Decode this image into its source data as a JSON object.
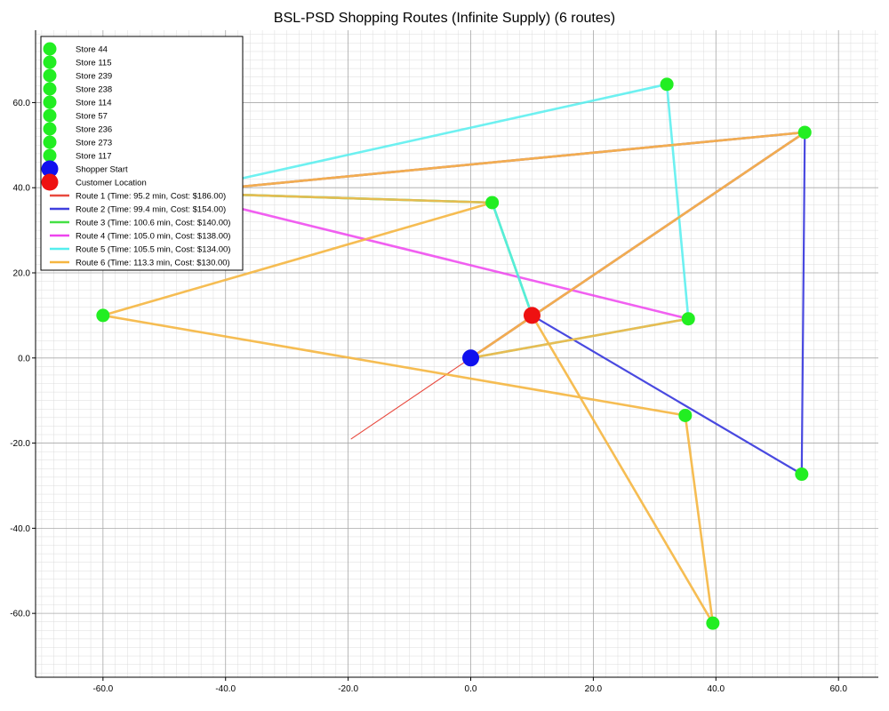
{
  "chart_data": {
    "type": "scatter",
    "title": "BSL-PSD Shopping Routes (Infinite Supply) (6 routes)",
    "xlabel": "",
    "ylabel": "",
    "xlim": [
      -71,
      66.5
    ],
    "ylim": [
      -75,
      77
    ],
    "x_ticks": [
      -60,
      -40,
      -20,
      0,
      20,
      40,
      60
    ],
    "y_ticks": [
      -60,
      -40,
      -20,
      0,
      20,
      40,
      60
    ],
    "tick_format_decimals": 1,
    "grid": true,
    "legend_position": "upper-left",
    "stores": [
      {
        "name": "Store 44",
        "x": 3.5,
        "y": 36.5
      },
      {
        "name": "Store 115",
        "x": 35.5,
        "y": 9.2
      },
      {
        "name": "Store 239",
        "x": 54.0,
        "y": -27.3
      },
      {
        "name": "Store 238",
        "x": 54.5,
        "y": 53.0
      },
      {
        "name": "Store 114",
        "x": 32.0,
        "y": 64.3
      },
      {
        "name": "Store 57",
        "x": -48.0,
        "y": 38.8
      },
      {
        "name": "Store 236",
        "x": -60.0,
        "y": 10.0
      },
      {
        "name": "Store 273",
        "x": 35.0,
        "y": -13.5
      },
      {
        "name": "Store 117",
        "x": 39.5,
        "y": -62.3
      }
    ],
    "shopper_start": {
      "name": "Shopper Start",
      "x": 0.0,
      "y": 0.0
    },
    "customer": {
      "name": "Customer Location",
      "x": 10.0,
      "y": 10.0
    },
    "routes": [
      {
        "name": "Route 1 (Time: 95.2 min, Cost: $186.00)",
        "color": "#e8493e",
        "points": [
          [
            -19.5,
            -19.0
          ],
          [
            0.0,
            0.0
          ],
          [
            10.0,
            10.0
          ]
        ]
      },
      {
        "name": "Route 2 (Time: 99.4 min, Cost: $154.00)",
        "color": "#3f3fde",
        "points": [
          [
            0.0,
            0.0
          ],
          [
            54.5,
            53.0
          ],
          [
            54.0,
            -27.3
          ],
          [
            10.0,
            10.0
          ]
        ]
      },
      {
        "name": "Route 3 (Time: 100.6 min, Cost: $140.00)",
        "color": "#44e044",
        "points": [
          [
            0.0,
            0.0
          ],
          [
            54.5,
            53.0
          ],
          [
            -48.0,
            38.8
          ],
          [
            3.5,
            36.5
          ],
          [
            10.0,
            10.0
          ]
        ]
      },
      {
        "name": "Route 4 (Time: 105.0 min, Cost: $138.00)",
        "color": "#ee44ee",
        "points": [
          [
            0.0,
            0.0
          ],
          [
            54.5,
            53.0
          ],
          [
            -48.0,
            38.8
          ],
          [
            35.5,
            9.2
          ]
        ]
      },
      {
        "name": "Route 5 (Time: 105.5 min, Cost: $134.00)",
        "color": "#55eeee",
        "points": [
          [
            0.0,
            0.0
          ],
          [
            35.5,
            9.2
          ],
          [
            32.0,
            64.3
          ],
          [
            -48.0,
            38.8
          ],
          [
            3.5,
            36.5
          ],
          [
            10.0,
            10.0
          ]
        ]
      },
      {
        "name": "Route 6 (Time: 113.3 min, Cost: $130.00)",
        "color": "#f5b640",
        "points": [
          [
            0.0,
            0.0
          ],
          [
            35.5,
            9.2
          ],
          [
            0.0,
            0.0
          ],
          [
            54.5,
            53.0
          ],
          [
            -48.0,
            38.8
          ],
          [
            3.5,
            36.5
          ],
          [
            -60.0,
            10.0
          ],
          [
            35.0,
            -13.5
          ],
          [
            39.5,
            -62.3
          ],
          [
            10.0,
            10.0
          ]
        ]
      }
    ]
  }
}
